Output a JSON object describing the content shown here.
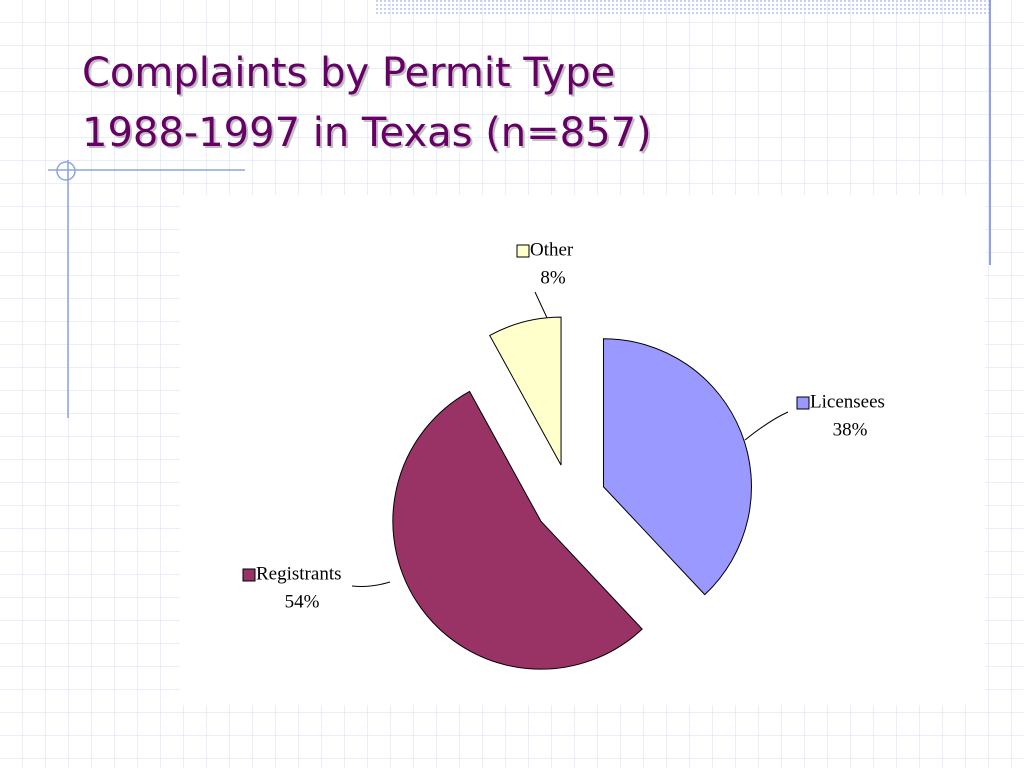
{
  "chart_data": {
    "type": "pie",
    "title": [
      "Complaints by Permit Type",
      "1988-1997 in Texas (n=857)"
    ],
    "categories": [
      "Licensees",
      "Registrants",
      "Other"
    ],
    "values": [
      38,
      54,
      8
    ],
    "value_labels": [
      "38%",
      "54%",
      "8%"
    ],
    "colors": [
      "#9999ff",
      "#993366",
      "#ffffcc"
    ]
  }
}
